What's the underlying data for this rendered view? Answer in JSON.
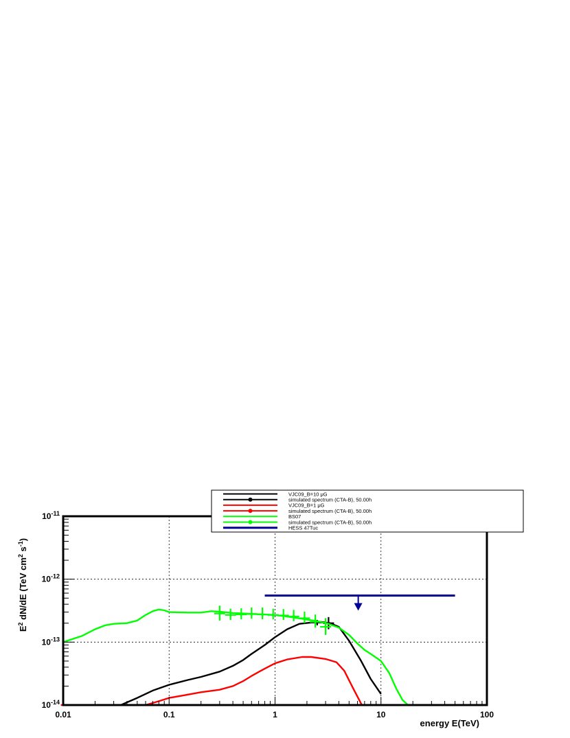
{
  "chart_data": {
    "type": "line",
    "title": "",
    "xlabel": "energy E(TeV)",
    "ylabel": "E² dN/dE (TeV cm² s⁻¹)",
    "xscale": "log",
    "yscale": "log",
    "xlim": [
      0.01,
      100
    ],
    "ylim": [
      1e-14,
      1e-11
    ],
    "grid": true,
    "legend_position": "top-right",
    "x_tick_labels": [
      "0.01",
      "0.1",
      "1",
      "10",
      "100"
    ],
    "y_tick_labels": [
      {
        "mantissa": "10",
        "exp": "-11",
        "value": 1e-11
      },
      {
        "mantissa": "10",
        "exp": "-12",
        "value": 1e-12
      },
      {
        "mantissa": "10",
        "exp": "-13",
        "value": 1e-13
      },
      {
        "mantissa": "10",
        "exp": "-14",
        "value": 1e-14
      }
    ],
    "ylabel_parts": {
      "E": "E",
      "sup1": "2",
      "mid": " dN/dE (TeV cm",
      "sup2": "2",
      "s": " s",
      "sup3": "-1",
      "end": ")"
    },
    "series": [
      {
        "name": "VJC09_B=10 μG",
        "color": "#000000",
        "kind": "line",
        "x": [
          0.035,
          0.05,
          0.07,
          0.1,
          0.15,
          0.2,
          0.3,
          0.4,
          0.5,
          0.6,
          0.8,
          1.0,
          1.3,
          1.7,
          2.2,
          2.7,
          3.3,
          4.0,
          5.0,
          6.5,
          8.0,
          10.0
        ],
        "y": [
          1e-14,
          1.3e-14,
          1.7e-14,
          2.1e-14,
          2.5e-14,
          2.8e-14,
          3.4e-14,
          4.2e-14,
          5.2e-14,
          6.5e-14,
          9e-14,
          1.2e-13,
          1.6e-13,
          1.95e-13,
          2.05e-13,
          2.1e-13,
          2e-13,
          1.75e-13,
          1.05e-13,
          5e-14,
          2.6e-14,
          1.5e-14
        ]
      },
      {
        "name": "simulated spectrum (CTA-B), 50.00h",
        "color": "#000000",
        "kind": "points",
        "x": [
          2.5,
          3.2
        ],
        "y": [
          2.05e-13,
          2e-13
        ],
        "yerr_lo": [
          1.85e-13,
          1.6e-13
        ],
        "yerr_hi": [
          2.25e-13,
          2.5e-13
        ]
      },
      {
        "name": "VJC09_B=1 μG",
        "color": "#ff0000",
        "kind": "line",
        "x": [
          0.0095,
          0.06,
          0.08,
          0.1,
          0.13,
          0.2,
          0.3,
          0.4,
          0.5,
          0.6,
          0.8,
          1.0,
          1.3,
          1.8,
          2.2,
          3.0,
          3.8,
          4.5,
          5.5,
          6.6,
          8.0
        ],
        "y": [
          1e-14,
          1e-14,
          1.15e-14,
          1.3e-14,
          1.4e-14,
          1.6e-14,
          1.75e-14,
          2e-14,
          2.4e-14,
          2.9e-14,
          3.8e-14,
          4.6e-14,
          5.3e-14,
          5.8e-14,
          5.8e-14,
          5.4e-14,
          4.8e-14,
          3.5e-14,
          1.8e-14,
          1e-14,
          1e-14
        ]
      },
      {
        "name": "simulated spectrum (CTA-B), 50.00h",
        "color": "#ff0000",
        "kind": "points",
        "x": [],
        "y": []
      },
      {
        "name": "BS07",
        "color": "#00ff00",
        "kind": "line",
        "x": [
          0.01,
          0.015,
          0.02,
          0.025,
          0.03,
          0.04,
          0.05,
          0.06,
          0.07,
          0.08,
          0.09,
          0.1,
          0.15,
          0.2,
          0.25,
          0.3,
          0.4,
          0.5,
          0.6,
          0.8,
          1.0,
          1.3,
          1.8,
          2.5,
          3.2,
          4.0,
          5.0,
          6.0,
          7.0,
          8.0,
          10.0,
          12.0,
          14.0,
          16.0,
          18.0,
          20.0,
          22.0
        ],
        "y": [
          1e-13,
          1.25e-13,
          1.6e-13,
          1.85e-13,
          1.95e-13,
          2e-13,
          2.2e-13,
          2.7e-13,
          3.1e-13,
          3.3e-13,
          3.2e-13,
          3e-13,
          2.95e-13,
          2.95e-13,
          3.1e-13,
          3.05e-13,
          2.9e-13,
          2.85e-13,
          2.8e-13,
          2.75e-13,
          2.7e-13,
          2.55e-13,
          2.35e-13,
          2.15e-13,
          1.95e-13,
          1.7e-13,
          1.3e-13,
          9.5e-14,
          7.5e-14,
          6.5e-14,
          5e-14,
          3.2e-14,
          1.8e-14,
          1.2e-14,
          1e-14,
          1e-14,
          1e-14
        ]
      },
      {
        "name": "simulated spectrum (CTA-B), 50.00h",
        "color": "#00ff00",
        "kind": "points",
        "x": [
          0.3,
          0.38,
          0.48,
          0.6,
          0.76,
          0.96,
          1.2,
          1.5,
          1.9,
          2.4,
          3.0
        ],
        "y": [
          2.85e-13,
          2.7e-13,
          2.75e-13,
          2.8e-13,
          2.75e-13,
          2.7e-13,
          2.65e-13,
          2.55e-13,
          2.4e-13,
          2.1e-13,
          1.75e-13
        ],
        "yerr_lo": [
          2.2e-13,
          2.25e-13,
          2.3e-13,
          2.35e-13,
          2.3e-13,
          2.3e-13,
          2.25e-13,
          2.15e-13,
          2e-13,
          1.7e-13,
          1.3e-13
        ],
        "yerr_hi": [
          3.8e-13,
          3.4e-13,
          3.45e-13,
          3.55e-13,
          3.55e-13,
          3.4e-13,
          3.35e-13,
          3.25e-13,
          3.05e-13,
          2.75e-13,
          2.4e-13
        ]
      },
      {
        "name": "HESS 47Tuc",
        "color": "#000099",
        "kind": "upper_limit",
        "x": [
          0.8,
          50.0
        ],
        "y": [
          5.5e-13,
          5.5e-13
        ],
        "arrow_at": 6.1
      }
    ],
    "legend_entries": [
      {
        "label": "VJC09_B=10 μG",
        "color": "#000000",
        "marker": false
      },
      {
        "label": "simulated spectrum (CTA-B), 50.00h",
        "color": "#000000",
        "marker": true
      },
      {
        "label": "VJC09_B=1 μG",
        "color": "#ff0000",
        "marker": false
      },
      {
        "label": "simulated spectrum (CTA-B), 50.00h",
        "color": "#ff0000",
        "marker": true
      },
      {
        "label": "BS07",
        "color": "#00ff00",
        "marker": false
      },
      {
        "label": "simulated spectrum (CTA-B), 50.00h",
        "color": "#00ff00",
        "marker": true
      },
      {
        "label": "HESS 47Tuc",
        "color": "#000099",
        "marker": false
      }
    ]
  }
}
